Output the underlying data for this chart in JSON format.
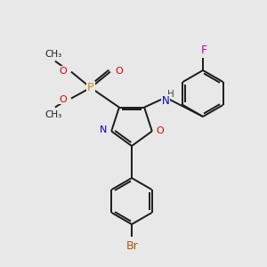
{
  "bg_color": "#e8e8e8",
  "bond_color": "#1a1a1a",
  "colors": {
    "N": "#0000cc",
    "O": "#dd0000",
    "P": "#cc8800",
    "Br": "#aa5500",
    "F": "#cc00bb",
    "H": "#444444",
    "C": "#1a1a1a"
  },
  "figsize": [
    3.0,
    3.0
  ],
  "dpi": 100
}
